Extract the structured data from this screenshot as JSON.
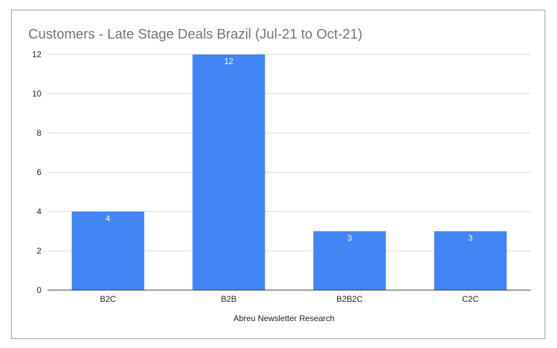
{
  "chart_data": {
    "type": "bar",
    "title": "Customers - Late Stage Deals Brazil (Jul-21 to Oct-21)",
    "xlabel": "Abreu Newsletter Research",
    "ylabel": "",
    "categories": [
      "B2C",
      "B2B",
      "B2B2C",
      "C2C"
    ],
    "values": [
      4,
      12,
      3,
      3
    ],
    "data_labels": [
      "4",
      "12",
      "3",
      "3"
    ],
    "y_ticks": [
      0,
      2,
      4,
      6,
      8,
      10,
      12
    ],
    "ylim": [
      0,
      12
    ],
    "grid": true,
    "legend": "none",
    "colors": {
      "bar": "#4285f4",
      "grid": "#d9d9d9",
      "axis": "#333333",
      "title": "#757575",
      "frame": "#9e9e9e"
    }
  }
}
